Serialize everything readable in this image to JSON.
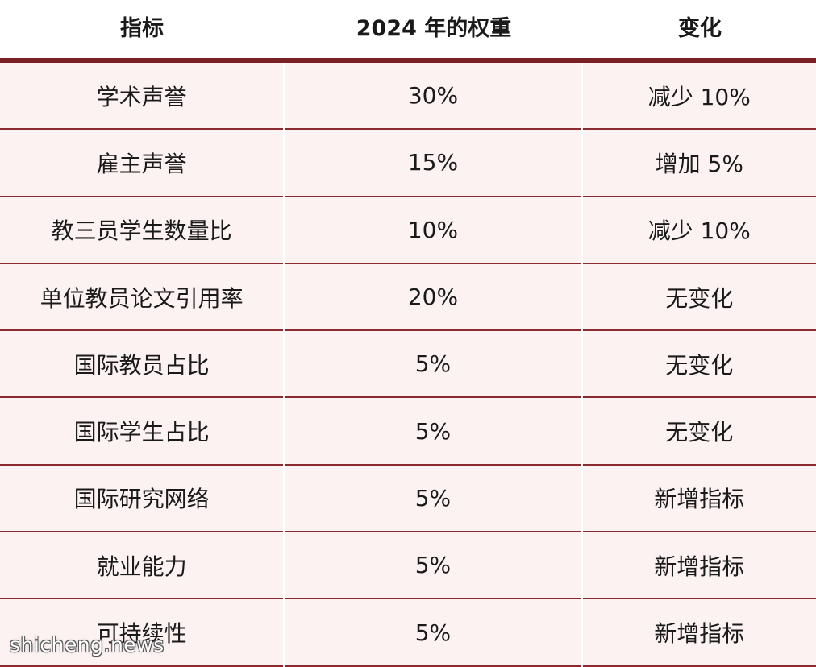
{
  "header": {
    "col1": "指标",
    "col2": "2024 年的权重",
    "col3": "变化"
  },
  "rows": [
    {
      "indicator": "学术声誉",
      "weight": "30%",
      "change": "减少 10%"
    },
    {
      "indicator": "雇主声誉",
      "weight": "15%",
      "change": "增加 5%"
    },
    {
      "indicator": "教三员学生数量比",
      "weight": "10%",
      "change": "减少 10%"
    },
    {
      "indicator": "单位教员论文引用率",
      "weight": "20%",
      "change": "无变化"
    },
    {
      "indicator": "国际教员占比",
      "weight": "5%",
      "change": "无变化"
    },
    {
      "indicator": "国际学生占比",
      "weight": "5%",
      "change": "无变化"
    },
    {
      "indicator": "国际研究网络",
      "weight": "5%",
      "change": "新增指标"
    },
    {
      "indicator": "就业能力",
      "weight": "5%",
      "change": "新增指标"
    },
    {
      "indicator": "可持续性",
      "weight": "5%",
      "change": "新增指标"
    }
  ],
  "watermark": "shicheng.news",
  "colors": {
    "rule": "#7a1f24",
    "row_bg": "#fdf2f2",
    "row_border": "#8a2a2f"
  }
}
